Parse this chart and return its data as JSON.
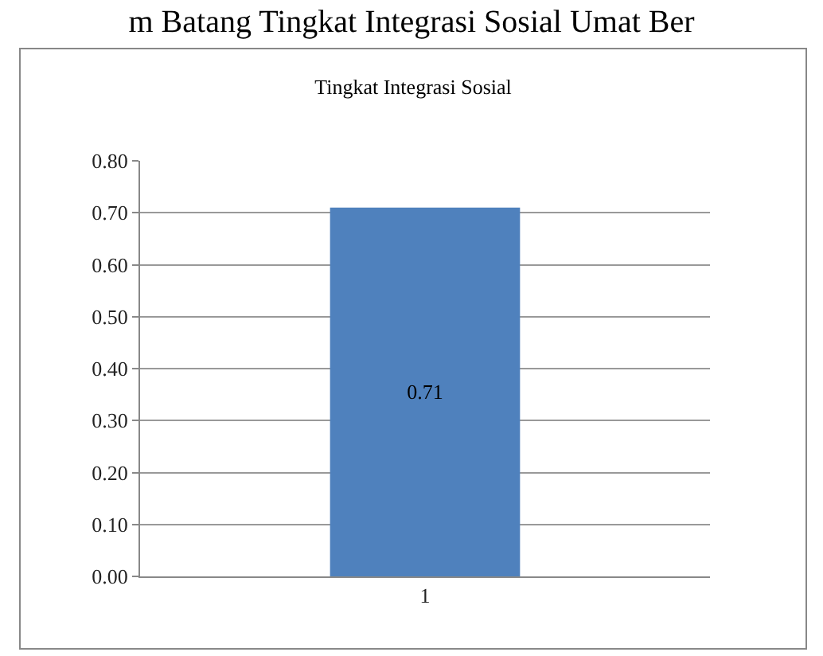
{
  "chart_data": {
    "type": "bar",
    "title": "Tingkat Integrasi Sosial",
    "annotations": [
      "m Batang Tingkat Integrasi Sosial Umat Ber"
    ],
    "categories": [
      "1"
    ],
    "values": [
      0.71
    ],
    "color": "#4f81bd",
    "ylim": [
      0,
      0.8
    ],
    "yticks": [
      {
        "value": 0,
        "label": "0.00"
      },
      {
        "value": 0.1,
        "label": "0.10"
      },
      {
        "value": 0.2,
        "label": "0.20"
      },
      {
        "value": 0.3,
        "label": "0.30"
      },
      {
        "value": 0.4,
        "label": "0.40"
      },
      {
        "value": 0.5,
        "label": "0.50"
      },
      {
        "value": 0.6,
        "label": "0.60"
      },
      {
        "value": 0.7,
        "label": "0.70"
      },
      {
        "value": 0.8,
        "label": "0.80"
      }
    ],
    "grid": "y",
    "data_labels": true
  }
}
